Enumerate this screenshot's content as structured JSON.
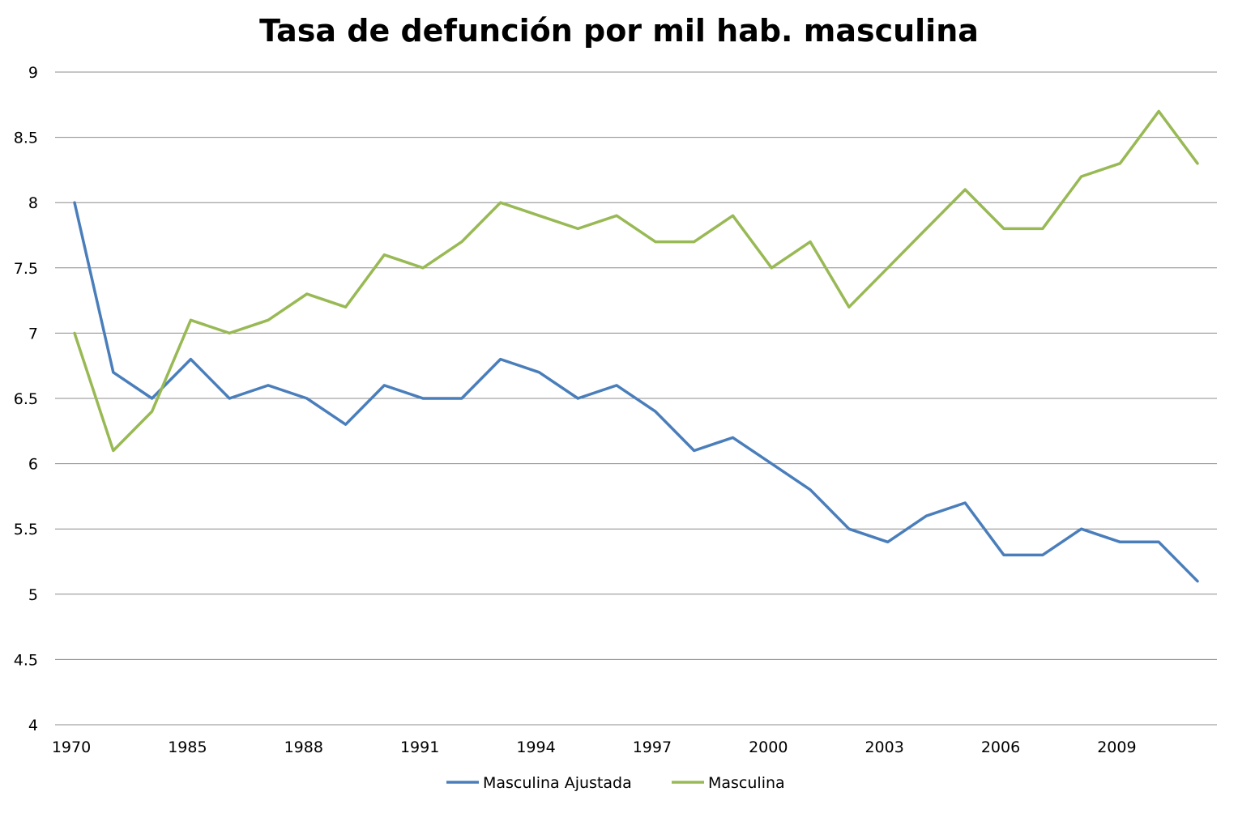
{
  "chart_data": {
    "type": "line",
    "title": "Tasa de defunción por mil hab. masculina",
    "xlabel": "",
    "ylabel": "",
    "ylim": [
      4,
      9
    ],
    "yticks": [
      "4",
      "4.5",
      "5",
      "5.5",
      "6",
      "6.5",
      "7",
      "7.5",
      "8",
      "8.5",
      "9"
    ],
    "ytick_values": [
      4,
      4.5,
      5,
      5.5,
      6,
      6.5,
      7,
      7.5,
      8,
      8.5,
      9
    ],
    "categories": [
      "1970",
      "",
      "",
      "1985",
      "",
      "",
      "1988",
      "",
      "",
      "1991",
      "",
      "",
      "1994",
      "",
      "",
      "1997",
      "",
      "",
      "2000",
      "",
      "",
      "2003",
      "",
      "",
      "2006",
      "",
      "",
      "2009",
      "",
      ""
    ],
    "x_tick_labels": [
      "1970",
      "1985",
      "1988",
      "1991",
      "1994",
      "1997",
      "2000",
      "2003",
      "2006",
      "2009"
    ],
    "x_tick_every": 3,
    "grid": true,
    "legend_position": "bottom",
    "series": [
      {
        "name": "Masculina Ajustada",
        "color": "#4a7ebb",
        "values": [
          8.0,
          6.7,
          6.5,
          6.8,
          6.5,
          6.6,
          6.5,
          6.3,
          6.6,
          6.5,
          6.5,
          6.8,
          6.7,
          6.5,
          6.6,
          6.4,
          6.1,
          6.2,
          6.0,
          5.8,
          5.5,
          5.4,
          5.6,
          5.7,
          5.3,
          5.3,
          5.5,
          5.4,
          5.4,
          5.1
        ]
      },
      {
        "name": "Masculina",
        "color": "#98b954",
        "values": [
          7.0,
          6.1,
          6.4,
          7.1,
          7.0,
          7.1,
          7.3,
          7.2,
          7.6,
          7.5,
          7.7,
          8.0,
          7.9,
          7.8,
          7.9,
          7.7,
          7.7,
          7.9,
          7.5,
          7.7,
          7.2,
          7.5,
          7.8,
          8.1,
          7.8,
          7.8,
          8.2,
          8.3,
          8.7,
          8.3
        ]
      }
    ]
  }
}
